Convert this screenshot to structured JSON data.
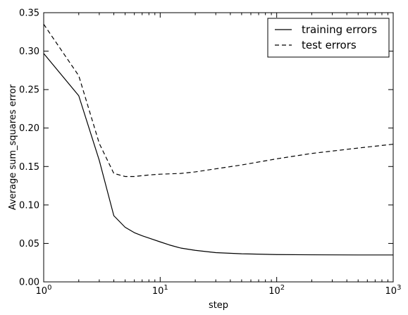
{
  "chart_data": {
    "type": "line",
    "title": "",
    "xlabel": "step",
    "ylabel": "Average sum_squares error",
    "xscale": "log",
    "xlim": [
      1,
      1000
    ],
    "ylim": [
      0,
      0.35
    ],
    "x_ticks": [
      {
        "value": 1,
        "base": "10",
        "exp": "0"
      },
      {
        "value": 10,
        "base": "10",
        "exp": "1"
      },
      {
        "value": 100,
        "base": "10",
        "exp": "2"
      },
      {
        "value": 1000,
        "base": "10",
        "exp": "3"
      }
    ],
    "y_ticks": [
      "0.00",
      "0.05",
      "0.10",
      "0.15",
      "0.20",
      "0.25",
      "0.30",
      "0.35"
    ],
    "grid": false,
    "legend_position": "top-right",
    "series": [
      {
        "name": "training errors",
        "style": "solid",
        "color": "#000000",
        "x": [
          1,
          2,
          3,
          4,
          5,
          6,
          7,
          8,
          10,
          12,
          15,
          20,
          30,
          50,
          100,
          200,
          500,
          1000
        ],
        "y": [
          0.297,
          0.242,
          0.158,
          0.086,
          0.071,
          0.064,
          0.06,
          0.057,
          0.052,
          0.048,
          0.044,
          0.041,
          0.038,
          0.0365,
          0.0355,
          0.0352,
          0.035,
          0.035
        ]
      },
      {
        "name": "test errors",
        "style": "dashed",
        "color": "#000000",
        "x": [
          1,
          2,
          3,
          4,
          5,
          6,
          8,
          10,
          15,
          20,
          30,
          50,
          100,
          200,
          500,
          1000
        ],
        "y": [
          0.335,
          0.268,
          0.18,
          0.141,
          0.137,
          0.137,
          0.139,
          0.14,
          0.141,
          0.143,
          0.147,
          0.152,
          0.16,
          0.167,
          0.174,
          0.179
        ]
      }
    ]
  }
}
